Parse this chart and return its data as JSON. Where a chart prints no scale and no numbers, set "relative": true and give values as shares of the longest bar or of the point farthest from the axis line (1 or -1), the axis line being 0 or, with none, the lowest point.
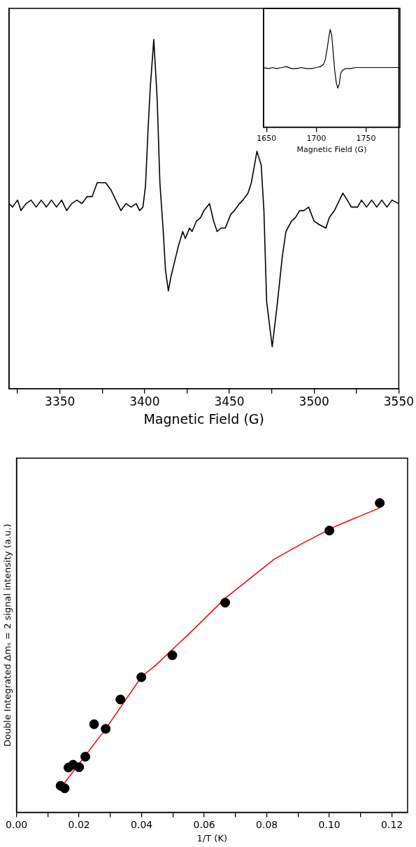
{
  "chart_data": [
    {
      "type": "line",
      "xlabel": "Magnetic Field (G)",
      "relative": true,
      "tick_labels": "x",
      "series": [
        {
          "color": "#000000",
          "x": [
            3320,
            3322,
            3325,
            3327,
            3330,
            3333,
            3336,
            3339,
            3342,
            3345,
            3348,
            3351,
            3354,
            3357,
            3360,
            3363,
            3366,
            3369,
            3372,
            3374,
            3377,
            3380,
            3383,
            3386,
            3389,
            3392,
            3395,
            3397,
            3399,
            3400.5,
            3402,
            3403.3,
            3405.4,
            3407.4,
            3409,
            3411,
            3412.3,
            3414,
            3415.5,
            3418,
            3420,
            3422.5,
            3424,
            3426.5,
            3428,
            3430.6,
            3433,
            3435,
            3438.3,
            3440.7,
            3442.8,
            3445,
            3447.6,
            3450.9,
            3453,
            3456,
            3458,
            3461,
            3463,
            3466.3,
            3468.8,
            3470.4,
            3472,
            3475.3,
            3478,
            3481.3,
            3483.4,
            3486.7,
            3489,
            3491.5,
            3494,
            3496.8,
            3500,
            3503,
            3507,
            3509,
            3512,
            3515,
            3517,
            3519.6,
            3522,
            3525.7,
            3528,
            3531,
            3534,
            3537,
            3540,
            3543,
            3546,
            3550
          ],
          "values": [
            0.53,
            0.52,
            0.54,
            0.51,
            0.53,
            0.54,
            0.52,
            0.54,
            0.52,
            0.54,
            0.52,
            0.54,
            0.51,
            0.53,
            0.54,
            0.53,
            0.55,
            0.55,
            0.59,
            0.59,
            0.59,
            0.57,
            0.54,
            0.51,
            0.53,
            0.52,
            0.53,
            0.51,
            0.52,
            0.58,
            0.74,
            0.86,
            1.0,
            0.83,
            0.59,
            0.45,
            0.34,
            0.28,
            0.32,
            0.37,
            0.41,
            0.45,
            0.43,
            0.46,
            0.45,
            0.48,
            0.49,
            0.51,
            0.53,
            0.48,
            0.45,
            0.46,
            0.46,
            0.5,
            0.51,
            0.53,
            0.54,
            0.56,
            0.59,
            0.68,
            0.64,
            0.51,
            0.25,
            0.12,
            0.23,
            0.38,
            0.45,
            0.48,
            0.49,
            0.51,
            0.51,
            0.52,
            0.48,
            0.47,
            0.46,
            0.49,
            0.51,
            0.54,
            0.56,
            0.54,
            0.52,
            0.52,
            0.54,
            0.52,
            0.54,
            0.52,
            0.54,
            0.52,
            0.54,
            0.53
          ]
        }
      ],
      "xlim": [
        3320,
        3550
      ],
      "xticks": [
        {
          "value": 3325,
          "label": null
        },
        3350,
        {
          "value": 3375,
          "label": null
        },
        3400,
        {
          "value": 3425,
          "label": null
        },
        3450,
        {
          "value": 3475,
          "label": null
        },
        3500,
        {
          "value": 3525,
          "label": null
        },
        3550
      ]
    },
    {
      "type": "line",
      "xlabel": "Magnetic Field (G)",
      "relative": true,
      "tick_labels": "x",
      "series": [
        {
          "color": "#000000",
          "x": [
            1647,
            1652,
            1656,
            1660,
            1665,
            1670,
            1675,
            1680,
            1685,
            1690,
            1695,
            1700,
            1704,
            1707,
            1709,
            1711,
            1713,
            1714,
            1715.5,
            1717,
            1718.5,
            1720,
            1721.5,
            1723,
            1724.5,
            1726,
            1729,
            1733,
            1740,
            1748,
            1755,
            1762,
            1770,
            1777,
            1784
          ],
          "values": [
            0.61,
            0.6,
            0.61,
            0.6,
            0.61,
            0.62,
            0.6,
            0.6,
            0.61,
            0.6,
            0.6,
            0.61,
            0.62,
            0.64,
            0.69,
            0.81,
            0.95,
            1.0,
            0.94,
            0.76,
            0.58,
            0.46,
            0.4,
            0.44,
            0.55,
            0.58,
            0.6,
            0.6,
            0.61,
            0.61,
            0.61,
            0.61,
            0.61,
            0.61,
            0.61
          ]
        }
      ],
      "xlim": [
        1647,
        1784
      ],
      "xticks": [
        1650,
        1700,
        1750
      ]
    },
    {
      "type": "scatter",
      "xlabel": "1/T (K)",
      "ylabel": "Double Integrated Δmₛ = 2 signal intensity (a.u.)",
      "relative": true,
      "tick_labels": "x",
      "series": [
        {
          "color": "#000000",
          "marker": "circle",
          "x": [
            0.0141,
            0.0154,
            0.0166,
            0.0181,
            0.02,
            0.022,
            0.0248,
            0.0285,
            0.0332,
            0.0399,
            0.0498,
            0.0667,
            0.1,
            0.1161
          ],
          "values": [
            0.086,
            0.078,
            0.145,
            0.154,
            0.146,
            0.18,
            0.285,
            0.27,
            0.365,
            0.437,
            0.508,
            0.678,
            0.911,
            1
          ]
        },
        {
          "type": "line",
          "color": "#ff0000",
          "marker": "none",
          "x": [
            0.0142,
            0.02,
            0.0285,
            0.04,
            0.0444,
            0.0547,
            0.0668,
            0.0823,
            0.0918,
            0.1022,
            0.116
          ],
          "values": [
            0.08,
            0.157,
            0.27,
            0.439,
            0.475,
            0.573,
            0.693,
            0.818,
            0.872,
            0.926,
            0.984
          ]
        }
      ],
      "xlim": [
        0,
        0.125
      ],
      "xticks": [
        {
          "value": 0,
          "label": "0.00"
        },
        {
          "value": 0.01,
          "label": null
        },
        {
          "value": 0.02,
          "label": "0.02"
        },
        {
          "value": 0.03,
          "label": null
        },
        {
          "value": 0.04,
          "label": "0.04"
        },
        {
          "value": 0.05,
          "label": null
        },
        {
          "value": 0.06,
          "label": "0.06"
        },
        {
          "value": 0.07,
          "label": null
        },
        {
          "value": 0.08,
          "label": "0.08"
        },
        {
          "value": 0.09,
          "label": null
        },
        {
          "value": 0.1,
          "label": "0.10"
        },
        {
          "value": 0.11,
          "label": null
        },
        {
          "value": 0.12,
          "label": "0.12"
        }
      ]
    }
  ]
}
